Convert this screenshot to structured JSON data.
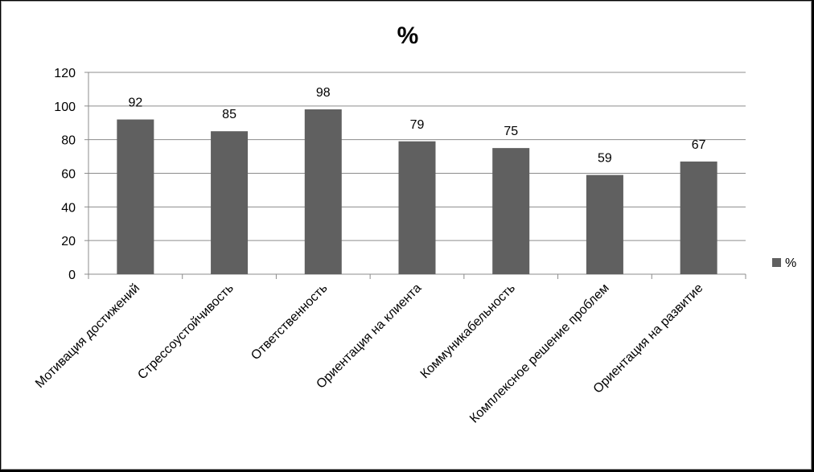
{
  "chart_data": {
    "type": "bar",
    "title": "%",
    "xlabel": "",
    "ylabel": "",
    "categories": [
      "Мотивация достижений",
      "Стрессоустойчивость",
      "Ответственность",
      "Ориентация на клиента",
      "Коммуникабельность",
      "Комплексное решение проблем",
      "Ориентация на развитие"
    ],
    "series": [
      {
        "name": "%",
        "values": [
          92,
          85,
          98,
          79,
          75,
          59,
          67
        ],
        "color": "#606060"
      }
    ],
    "ylim": [
      0,
      120
    ],
    "yticks": [
      0,
      20,
      40,
      60,
      80,
      100,
      120
    ],
    "grid": true,
    "data_labels": true,
    "legend": "right"
  }
}
